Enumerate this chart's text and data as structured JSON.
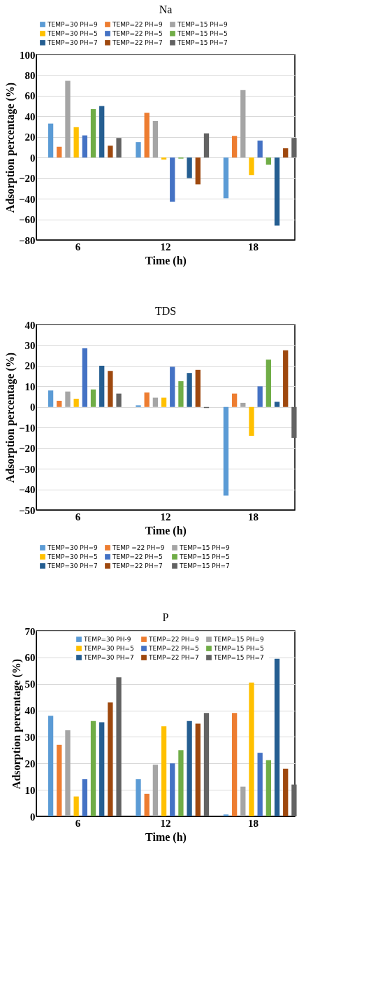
{
  "chart_data": [
    {
      "type": "bar",
      "title": "Na",
      "xlabel": "Time (h)",
      "ylabel": "Adsorption percentage (%)",
      "categories": [
        "6",
        "12",
        "18"
      ],
      "ylim": [
        -80,
        100
      ],
      "yticks": [
        -80,
        -60,
        -40,
        -20,
        0,
        20,
        40,
        60,
        80,
        100
      ],
      "grid": "y",
      "legend": "top",
      "series": [
        {
          "name": "TEMP=30  PH=9",
          "color": "#5b9bd5",
          "values": [
            33,
            15,
            -39.5
          ]
        },
        {
          "name": "TEMP=22  PH=9",
          "color": "#ed7d31",
          "values": [
            10.5,
            43.5,
            21
          ]
        },
        {
          "name": "TEMP=15  PH=9",
          "color": "#a5a5a5",
          "values": [
            74.5,
            35.5,
            65.5
          ]
        },
        {
          "name": "TEMP=30  PH=5",
          "color": "#ffc000",
          "values": [
            29.5,
            -2,
            -17
          ]
        },
        {
          "name": "TEMP=22  PH=5",
          "color": "#4472c4",
          "values": [
            21.5,
            -43,
            16.5
          ]
        },
        {
          "name": "TEMP=15  PH=5",
          "color": "#70ad47",
          "values": [
            47,
            -1,
            -7
          ]
        },
        {
          "name": "TEMP=30  PH=7",
          "color": "#255e91",
          "values": [
            50,
            -20,
            -66
          ]
        },
        {
          "name": "TEMP=22  PH=7",
          "color": "#9e480e",
          "values": [
            11.5,
            -26,
            9
          ]
        },
        {
          "name": "TEMP=15  PH=7",
          "color": "#636363",
          "values": [
            19,
            23.5,
            19
          ]
        }
      ]
    },
    {
      "type": "bar",
      "title": "TDS",
      "xlabel": "Time (h)",
      "ylabel": "Adsorption percentage (%)",
      "categories": [
        "6",
        "12",
        "18"
      ],
      "ylim": [
        -50,
        40
      ],
      "yticks": [
        -50,
        -40,
        -30,
        -20,
        -10,
        0,
        10,
        20,
        30,
        40
      ],
      "grid": "y",
      "legend": "bottom",
      "series": [
        {
          "name": "TEMP=30  PH=9",
          "color": "#5b9bd5",
          "values": [
            8,
            0.8,
            -43
          ]
        },
        {
          "name": "TEMP =22  PH=9",
          "color": "#ed7d31",
          "values": [
            3,
            7,
            6.5
          ]
        },
        {
          "name": "TEMP=15  PH=9",
          "color": "#a5a5a5",
          "values": [
            7.5,
            4.5,
            2
          ]
        },
        {
          "name": "TEMP=30  PH=5",
          "color": "#ffc000",
          "values": [
            4,
            4.5,
            -14
          ]
        },
        {
          "name": "TEMP=22  PH=5",
          "color": "#4472c4",
          "values": [
            28.5,
            19.5,
            10
          ]
        },
        {
          "name": "TEMP=15  PH=5",
          "color": "#70ad47",
          "values": [
            8.5,
            12.5,
            23
          ]
        },
        {
          "name": "TEMP=30  PH=7",
          "color": "#255e91",
          "values": [
            20,
            16.5,
            2.5
          ]
        },
        {
          "name": "TEMP=22  PH=7",
          "color": "#9e480e",
          "values": [
            17.5,
            18,
            27.5
          ]
        },
        {
          "name": "TEMP=15  PH=7",
          "color": "#636363",
          "values": [
            6.5,
            -0.5,
            -15
          ]
        }
      ]
    },
    {
      "type": "bar",
      "title": "P",
      "xlabel": "Time (h)",
      "ylabel": "Adsorption percentage (%)",
      "categories": [
        "6",
        "12",
        "18"
      ],
      "ylim": [
        0,
        70
      ],
      "yticks": [
        0,
        10,
        20,
        30,
        40,
        50,
        60,
        70
      ],
      "grid": "y",
      "legend": "top right",
      "series": [
        {
          "name": "TEMP=30  PH-9",
          "color": "#5b9bd5",
          "values": [
            38,
            14,
            0.7
          ]
        },
        {
          "name": "TEMP=22  PH=9",
          "color": "#ed7d31",
          "values": [
            27,
            8.5,
            39
          ]
        },
        {
          "name": "TEMP=15  PH=9",
          "color": "#a5a5a5",
          "values": [
            32.5,
            19.5,
            11.2
          ]
        },
        {
          "name": "TEMP=30  PH=5",
          "color": "#ffc000",
          "values": [
            7.5,
            34,
            50.5
          ]
        },
        {
          "name": "TEMP=22  PH=5",
          "color": "#4472c4",
          "values": [
            14,
            20,
            24
          ]
        },
        {
          "name": "TEMP=15  PH=5",
          "color": "#70ad47",
          "values": [
            36,
            25,
            21.2
          ]
        },
        {
          "name": "TEMP=30  PH=7",
          "color": "#255e91",
          "values": [
            35.5,
            36,
            59.5
          ]
        },
        {
          "name": "TEMP=22  PH=7",
          "color": "#9e480e",
          "values": [
            43,
            35,
            18
          ]
        },
        {
          "name": "TEMP=15  PH=7",
          "color": "#636363",
          "values": [
            52.5,
            39,
            12
          ]
        }
      ]
    }
  ]
}
